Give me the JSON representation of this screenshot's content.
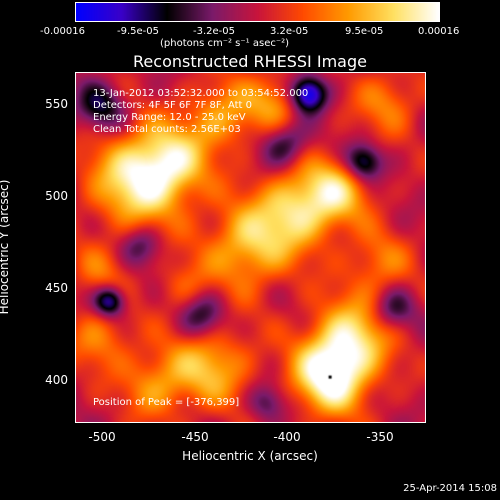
{
  "colorbar": {
    "tick_labels": [
      "-0.00016",
      "-9.5e-05",
      "-3.2e-05",
      "3.2e-05",
      "9.5e-05",
      "0.00016"
    ],
    "units": "(photons cm⁻² s⁻¹ asec⁻²)"
  },
  "title": "Reconstructed RHESSI Image",
  "annotations": {
    "time_range": "13-Jan-2012 03:52:32.000 to 03:54:52.000",
    "detectors": "Detectors: 4F 5F 6F 7F 8F, Att 0",
    "energy_range": "Energy Range: 12.0 - 25.0 keV",
    "clean_counts": "Clean    Total counts: 2.56E+03",
    "peak_position": "Position of Peak = [-376,399]"
  },
  "axes": {
    "xlabel": "Heliocentric X (arcsec)",
    "ylabel": "Heliocentric Y (arcsec)",
    "x_ticks": [
      "-500",
      "-450",
      "-400",
      "-350"
    ],
    "y_ticks": [
      "400",
      "450",
      "500",
      "550"
    ]
  },
  "footer": {
    "date": "25-Apr-2014 15:08"
  },
  "chart_data": {
    "type": "heatmap",
    "title": "Reconstructed RHESSI Image",
    "xlabel": "Heliocentric X (arcsec)",
    "ylabel": "Heliocentric Y (arcsec)",
    "xlim": [
      -513,
      -325
    ],
    "ylim": [
      375,
      563
    ],
    "x_ticks": [
      -500,
      -450,
      -400,
      -350
    ],
    "y_ticks": [
      400,
      450,
      500,
      550
    ],
    "colorbar_range": [
      -0.00016,
      0.00016
    ],
    "colormap": [
      "#0000ff",
      "#3a00c8",
      "#000000",
      "#7a1a6a",
      "#c8143c",
      "#ff4a00",
      "#ff9a00",
      "#ffe060",
      "#ffffff"
    ],
    "peak_position": [
      -376,
      399
    ],
    "blobs": [
      {
        "x": -376,
        "y": 399,
        "s": 14,
        "a": 1.0
      },
      {
        "x": -365,
        "y": 420,
        "s": 15,
        "a": 0.75
      },
      {
        "x": -480,
        "y": 505,
        "s": 18,
        "a": 0.82
      },
      {
        "x": -462,
        "y": 515,
        "s": 14,
        "a": 0.62
      },
      {
        "x": -420,
        "y": 470,
        "s": 16,
        "a": 0.68
      },
      {
        "x": -393,
        "y": 490,
        "s": 15,
        "a": 0.72
      },
      {
        "x": -372,
        "y": 500,
        "s": 13,
        "a": 0.58
      },
      {
        "x": -435,
        "y": 540,
        "s": 13,
        "a": 0.52
      },
      {
        "x": -405,
        "y": 548,
        "s": 12,
        "a": 0.48
      },
      {
        "x": -440,
        "y": 405,
        "s": 15,
        "a": 0.6
      },
      {
        "x": -470,
        "y": 395,
        "s": 13,
        "a": 0.48
      },
      {
        "x": -500,
        "y": 420,
        "s": 12,
        "a": 0.42
      },
      {
        "x": -350,
        "y": 460,
        "s": 12,
        "a": 0.4
      },
      {
        "x": -345,
        "y": 548,
        "s": 12,
        "a": 0.42
      },
      {
        "x": -500,
        "y": 455,
        "s": 11,
        "a": 0.3
      },
      {
        "x": -455,
        "y": 448,
        "s": 10,
        "a": 0.3
      },
      {
        "x": -388,
        "y": 552,
        "s": 7,
        "a": -1.1
      },
      {
        "x": -495,
        "y": 440,
        "s": 6,
        "a": -0.9
      },
      {
        "x": -358,
        "y": 515,
        "s": 7,
        "a": -0.75
      },
      {
        "x": -400,
        "y": 525,
        "s": 9,
        "a": -0.55
      },
      {
        "x": -500,
        "y": 545,
        "s": 9,
        "a": -0.55
      },
      {
        "x": -445,
        "y": 432,
        "s": 9,
        "a": -0.5
      },
      {
        "x": -342,
        "y": 435,
        "s": 8,
        "a": -0.45
      },
      {
        "x": -410,
        "y": 385,
        "s": 7,
        "a": -0.4
      },
      {
        "x": -478,
        "y": 470,
        "s": 8,
        "a": -0.4
      }
    ]
  }
}
